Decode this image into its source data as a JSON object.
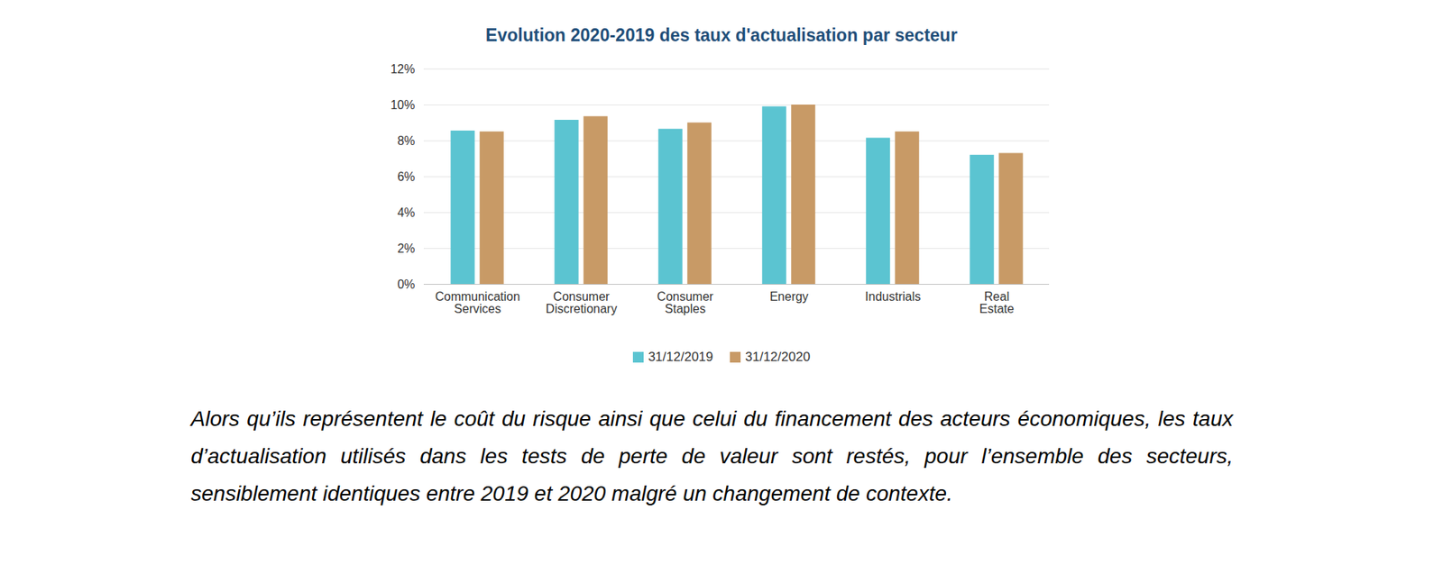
{
  "chart_data": {
    "type": "bar",
    "title": "Evolution 2020-2019 des taux d'actualisation par secteur",
    "categories": [
      "Communication Services",
      "Consumer Discretionary",
      "Consumer Staples",
      "Energy",
      "Industrials",
      "Real Estate"
    ],
    "series": [
      {
        "name": "31/12/2019",
        "color": "#5bc4d1",
        "values": [
          8.55,
          9.15,
          8.65,
          9.9,
          8.15,
          7.2
        ]
      },
      {
        "name": "31/12/2020",
        "color": "#c89a66",
        "values": [
          8.5,
          9.35,
          9.0,
          10.0,
          8.5,
          7.3
        ]
      }
    ],
    "ylim": [
      0,
      12
    ],
    "yticks": [
      {
        "value": 0,
        "label": "0%"
      },
      {
        "value": 2,
        "label": "2%"
      },
      {
        "value": 4,
        "label": "4%"
      },
      {
        "value": 6,
        "label": "6%"
      },
      {
        "value": 8,
        "label": "8%"
      },
      {
        "value": 10,
        "label": "10%"
      },
      {
        "value": 12,
        "label": "12%"
      }
    ],
    "grid": true,
    "legend": "bottom",
    "caption": "Alors qu’ils représentent le coût du risque ainsi que celui du financement des acteurs économiques, les taux d’actualisation utilisés dans les tests de perte de valeur sont restés, pour l’ensemble des secteurs, sensiblement identiques entre 2019 et 2020 malgré un changement de contexte."
  }
}
